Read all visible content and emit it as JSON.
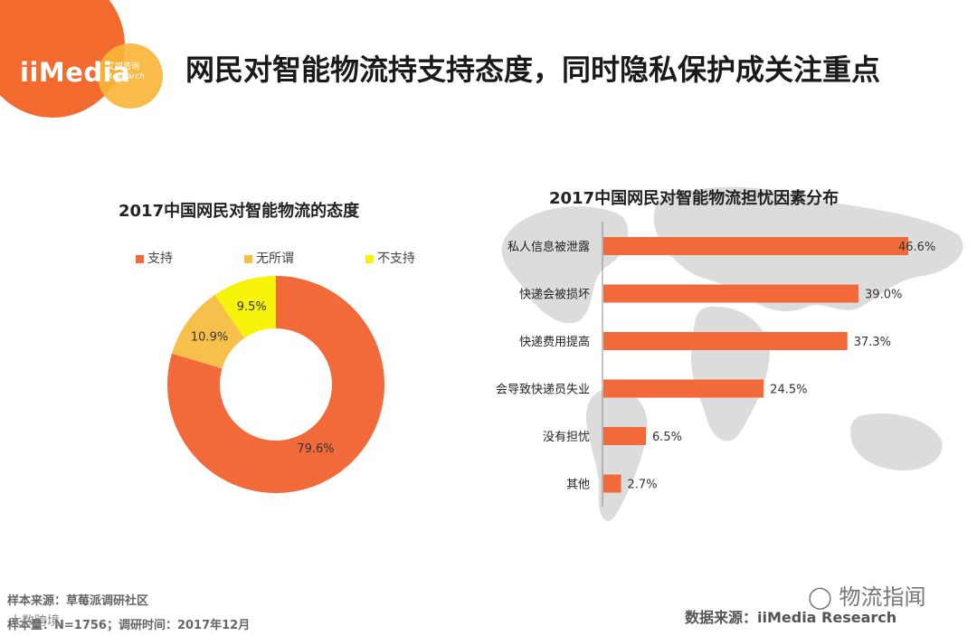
{
  "logo": {
    "text": "iiMedia",
    "sub_cn": "艾媒咨询",
    "sub_en": "Research",
    "colors": {
      "primary": "#f26a2e",
      "secondary": "#f8b53a"
    }
  },
  "page_title": "网民对智能物流持支持态度，同时隐私保护成关注重点",
  "chart_data": [
    {
      "type": "pie",
      "title": "2017中国网民对智能物流的态度",
      "legend_position": "top",
      "categories": [
        "支持",
        "无所谓",
        "不支持"
      ],
      "values": [
        79.6,
        10.9,
        9.5
      ],
      "labels": [
        "79.6%",
        "10.9%",
        "9.5%"
      ],
      "colors": [
        "#f26a3a",
        "#f7c04a",
        "#f7f20a"
      ]
    },
    {
      "type": "bar",
      "orientation": "horizontal",
      "title": "2017中国网民对智能物流担忧因素分布",
      "categories": [
        "私人信息被泄露",
        "快递会被损坏",
        "快递费用提高",
        "会导致快递员失业",
        "没有担忧",
        "其他"
      ],
      "values": [
        46.6,
        39.0,
        37.3,
        24.5,
        6.5,
        2.7
      ],
      "labels": [
        "46.6%",
        "39.0%",
        "37.3%",
        "24.5%",
        "6.5%",
        "2.7%"
      ],
      "color": "#f26a3a",
      "xlim": [
        0,
        50
      ]
    }
  ],
  "footer": {
    "sample_source": "样本来源：草莓派调研社区",
    "sample_size": "样本量：N=1756；调研时间：2017年12月",
    "data_source": "数据来源：iiMedia Research",
    "watermark": "物流指闻",
    "watermark2": "大数跨境"
  }
}
